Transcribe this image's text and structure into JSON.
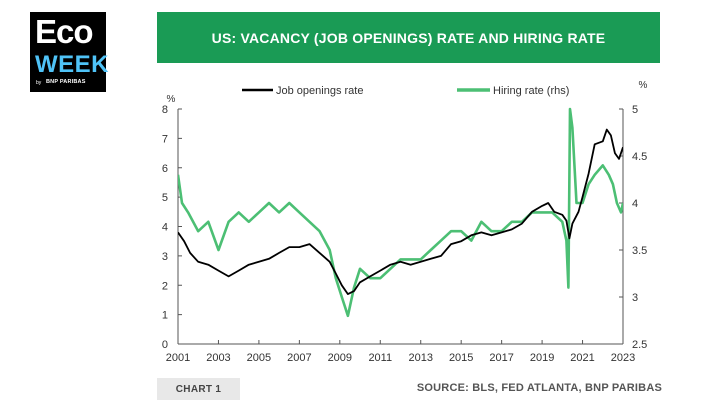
{
  "logo": {
    "top": "Eco",
    "bottom": "WEEK",
    "by": "by",
    "brand": "BNP PARIBAS"
  },
  "title": "US: VACANCY (JOB OPENINGS) RATE AND HIRING RATE",
  "chart_label": "CHART 1",
  "source": "SOURCE: BLS, FED ATLANTA, BNP PARIBAS",
  "chart_data": {
    "type": "line",
    "xlim": [
      2001,
      2023
    ],
    "x_ticks": [
      2001,
      2003,
      2005,
      2007,
      2009,
      2011,
      2013,
      2015,
      2017,
      2019,
      2021,
      2023
    ],
    "y_left": {
      "unit": "%",
      "lim": [
        0,
        8
      ],
      "ticks": [
        0,
        1,
        2,
        3,
        4,
        5,
        6,
        7,
        8
      ]
    },
    "y_right": {
      "unit": "%",
      "lim": [
        2.5,
        5
      ],
      "ticks": [
        2.5,
        3,
        3.5,
        4,
        4.5,
        5
      ]
    },
    "legend_position": "top-center",
    "grid": false,
    "series": [
      {
        "name": "Job openings rate",
        "axis": "left",
        "color": "#000000",
        "points": [
          [
            2001.0,
            3.8
          ],
          [
            2001.3,
            3.5
          ],
          [
            2001.6,
            3.1
          ],
          [
            2002.0,
            2.8
          ],
          [
            2002.5,
            2.7
          ],
          [
            2003.0,
            2.5
          ],
          [
            2003.5,
            2.3
          ],
          [
            2004.0,
            2.5
          ],
          [
            2004.5,
            2.7
          ],
          [
            2005.0,
            2.8
          ],
          [
            2005.5,
            2.9
          ],
          [
            2006.0,
            3.1
          ],
          [
            2006.5,
            3.3
          ],
          [
            2007.0,
            3.3
          ],
          [
            2007.5,
            3.4
          ],
          [
            2008.0,
            3.1
          ],
          [
            2008.5,
            2.8
          ],
          [
            2008.8,
            2.4
          ],
          [
            2009.1,
            2.0
          ],
          [
            2009.4,
            1.7
          ],
          [
            2009.7,
            1.8
          ],
          [
            2010.0,
            2.1
          ],
          [
            2010.5,
            2.3
          ],
          [
            2011.0,
            2.5
          ],
          [
            2011.5,
            2.7
          ],
          [
            2012.0,
            2.8
          ],
          [
            2012.5,
            2.7
          ],
          [
            2013.0,
            2.8
          ],
          [
            2013.5,
            2.9
          ],
          [
            2014.0,
            3.0
          ],
          [
            2014.5,
            3.4
          ],
          [
            2015.0,
            3.5
          ],
          [
            2015.5,
            3.7
          ],
          [
            2016.0,
            3.8
          ],
          [
            2016.5,
            3.7
          ],
          [
            2017.0,
            3.8
          ],
          [
            2017.5,
            3.9
          ],
          [
            2018.0,
            4.1
          ],
          [
            2018.5,
            4.5
          ],
          [
            2019.0,
            4.7
          ],
          [
            2019.3,
            4.8
          ],
          [
            2019.6,
            4.5
          ],
          [
            2020.0,
            4.4
          ],
          [
            2020.2,
            4.2
          ],
          [
            2020.35,
            3.6
          ],
          [
            2020.5,
            4.1
          ],
          [
            2020.8,
            4.5
          ],
          [
            2021.0,
            5.0
          ],
          [
            2021.3,
            5.8
          ],
          [
            2021.6,
            6.8
          ],
          [
            2022.0,
            6.9
          ],
          [
            2022.2,
            7.3
          ],
          [
            2022.4,
            7.1
          ],
          [
            2022.6,
            6.5
          ],
          [
            2022.8,
            6.3
          ],
          [
            2023.0,
            6.7
          ]
        ]
      },
      {
        "name": "Hiring rate (rhs)",
        "axis": "right",
        "color": "#4cbf74",
        "points": [
          [
            2001.0,
            4.3
          ],
          [
            2001.2,
            4.0
          ],
          [
            2001.5,
            3.9
          ],
          [
            2002.0,
            3.7
          ],
          [
            2002.5,
            3.8
          ],
          [
            2003.0,
            3.5
          ],
          [
            2003.5,
            3.8
          ],
          [
            2004.0,
            3.9
          ],
          [
            2004.5,
            3.8
          ],
          [
            2005.0,
            3.9
          ],
          [
            2005.5,
            4.0
          ],
          [
            2006.0,
            3.9
          ],
          [
            2006.5,
            4.0
          ],
          [
            2007.0,
            3.9
          ],
          [
            2007.5,
            3.8
          ],
          [
            2008.0,
            3.7
          ],
          [
            2008.5,
            3.5
          ],
          [
            2008.8,
            3.2
          ],
          [
            2009.1,
            3.0
          ],
          [
            2009.4,
            2.8
          ],
          [
            2009.7,
            3.1
          ],
          [
            2010.0,
            3.3
          ],
          [
            2010.5,
            3.2
          ],
          [
            2011.0,
            3.2
          ],
          [
            2011.5,
            3.3
          ],
          [
            2012.0,
            3.4
          ],
          [
            2012.5,
            3.4
          ],
          [
            2013.0,
            3.4
          ],
          [
            2013.5,
            3.5
          ],
          [
            2014.0,
            3.6
          ],
          [
            2014.5,
            3.7
          ],
          [
            2015.0,
            3.7
          ],
          [
            2015.5,
            3.6
          ],
          [
            2016.0,
            3.8
          ],
          [
            2016.5,
            3.7
          ],
          [
            2017.0,
            3.7
          ],
          [
            2017.5,
            3.8
          ],
          [
            2018.0,
            3.8
          ],
          [
            2018.5,
            3.9
          ],
          [
            2019.0,
            3.9
          ],
          [
            2019.5,
            3.9
          ],
          [
            2020.0,
            3.8
          ],
          [
            2020.2,
            3.6
          ],
          [
            2020.3,
            3.1
          ],
          [
            2020.38,
            5.0
          ],
          [
            2020.5,
            4.8
          ],
          [
            2020.7,
            4.0
          ],
          [
            2021.0,
            4.0
          ],
          [
            2021.3,
            4.2
          ],
          [
            2021.6,
            4.3
          ],
          [
            2022.0,
            4.4
          ],
          [
            2022.3,
            4.3
          ],
          [
            2022.5,
            4.2
          ],
          [
            2022.7,
            4.0
          ],
          [
            2022.9,
            3.9
          ],
          [
            2023.0,
            4.0
          ]
        ]
      }
    ]
  }
}
